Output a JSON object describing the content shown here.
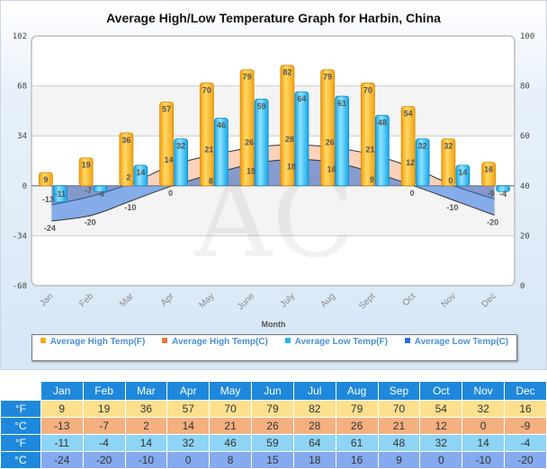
{
  "chart_data": {
    "type": "bar",
    "title": "Average High/Low Temperature Graph for Harbin, China",
    "xlabel": "Month",
    "categories": [
      "Jan",
      "Feb",
      "Mar",
      "Apr",
      "May",
      "June",
      "July",
      "Aug",
      "Sept",
      "Oct",
      "Nov",
      "Dec"
    ],
    "ylim": [
      -68,
      102
    ],
    "yticks": [
      102,
      68,
      34,
      0,
      -34,
      -68
    ],
    "y2ticks": [
      100,
      80,
      60,
      40,
      20,
      0
    ],
    "grid": true,
    "legend_placement": "bottom",
    "series": [
      {
        "name": "Average High Temp(F)",
        "type": "bar",
        "color": "#f7a81b",
        "values": [
          9,
          19,
          36,
          57,
          70,
          79,
          82,
          79,
          70,
          54,
          32,
          16
        ]
      },
      {
        "name": "Average High Temp(C)",
        "type": "area",
        "color": "#f07a3a",
        "values": [
          -13,
          -7,
          2,
          14,
          21,
          26,
          28,
          26,
          21,
          12,
          0,
          -9
        ]
      },
      {
        "name": "Average Low Temp(F)",
        "type": "bar",
        "color": "#29b6f0",
        "values": [
          -11,
          -4,
          14,
          32,
          46,
          59,
          64,
          61,
          48,
          32,
          14,
          -4
        ]
      },
      {
        "name": "Average Low Temp(C)",
        "type": "area",
        "color": "#2a6fe0",
        "values": [
          -24,
          -20,
          -10,
          0,
          8,
          15,
          18,
          16,
          9,
          0,
          -10,
          -20
        ]
      }
    ]
  },
  "table": {
    "months": [
      "Jan",
      "Feb",
      "Mar",
      "Apr",
      "May",
      "Jun",
      "Jul",
      "Aug",
      "Sep",
      "Oct",
      "Nov",
      "Dec"
    ],
    "rows": [
      {
        "unit": "°F",
        "color": "#fde08e",
        "values": [
          "9",
          "19",
          "36",
          "57",
          "70",
          "79",
          "82",
          "79",
          "70",
          "54",
          "32",
          "16"
        ]
      },
      {
        "unit": "°C",
        "color": "#f4b07f",
        "values": [
          "-13",
          "-7",
          "2",
          "14",
          "21",
          "26",
          "28",
          "26",
          "21",
          "12",
          "0",
          "-9"
        ]
      },
      {
        "unit": "°F",
        "color": "#8dd4f5",
        "values": [
          "-11",
          "-4",
          "14",
          "32",
          "46",
          "59",
          "64",
          "61",
          "48",
          "32",
          "14",
          "-4"
        ]
      },
      {
        "unit": "°C",
        "color": "#86aaf0",
        "values": [
          "-24",
          "-20",
          "-10",
          "0",
          "8",
          "15",
          "18",
          "16",
          "9",
          "0",
          "-10",
          "-20"
        ]
      }
    ]
  }
}
